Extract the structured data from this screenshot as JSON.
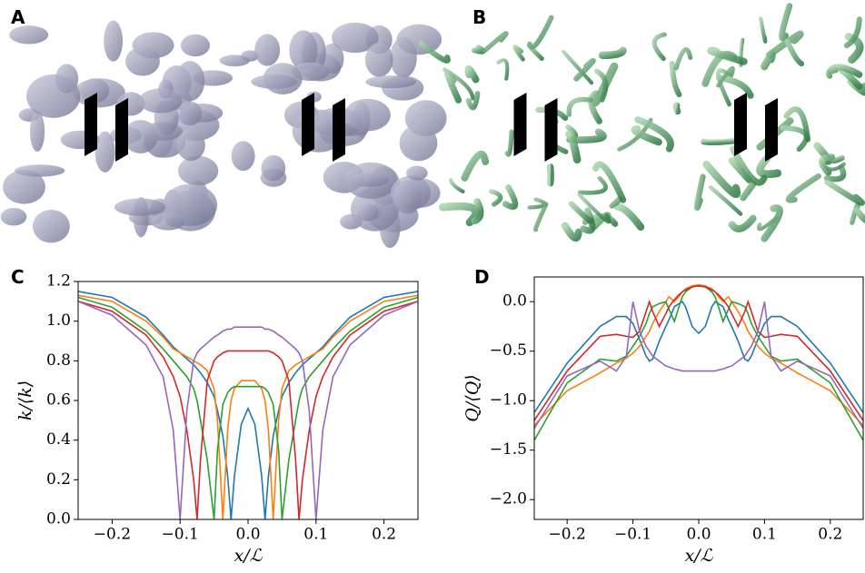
{
  "panel_labels": [
    "A",
    "B",
    "C",
    "D"
  ],
  "chart_data": [
    {
      "type": "line",
      "ylabel": "k/⟨k⟩",
      "xlabel": "x/ℒ",
      "x": [
        -0.25,
        -0.2,
        -0.15,
        -0.125,
        -0.11,
        -0.1,
        -0.09,
        -0.08,
        -0.075,
        -0.07,
        -0.06,
        -0.05,
        -0.045,
        -0.037,
        -0.03,
        -0.025,
        -0.02,
        -0.01,
        0,
        0.01,
        0.02,
        0.025,
        0.03,
        0.037,
        0.045,
        0.05,
        0.06,
        0.07,
        0.075,
        0.08,
        0.09,
        0.1,
        0.11,
        0.125,
        0.15,
        0.2,
        0.25
      ],
      "series": [
        {
          "color": "#1f77b4",
          "values": [
            1.15,
            1.12,
            1.02,
            0.93,
            0.87,
            0.84,
            0.81,
            0.78,
            0.76,
            0.74,
            0.69,
            0.62,
            0.55,
            0.42,
            0.22,
            0.0,
            0.22,
            0.48,
            0.56,
            0.48,
            0.22,
            0.0,
            0.22,
            0.42,
            0.55,
            0.62,
            0.69,
            0.74,
            0.76,
            0.78,
            0.81,
            0.84,
            0.87,
            0.93,
            1.02,
            1.12,
            1.15
          ]
        },
        {
          "color": "#ff7f0e",
          "values": [
            1.13,
            1.1,
            1.0,
            0.92,
            0.86,
            0.84,
            0.82,
            0.8,
            0.79,
            0.78,
            0.75,
            0.66,
            0.5,
            0.0,
            0.45,
            0.6,
            0.66,
            0.7,
            0.7,
            0.7,
            0.66,
            0.6,
            0.45,
            0.0,
            0.5,
            0.66,
            0.75,
            0.78,
            0.79,
            0.8,
            0.82,
            0.84,
            0.86,
            0.92,
            1.0,
            1.1,
            1.13
          ]
        },
        {
          "color": "#2ca02c",
          "values": [
            1.12,
            1.07,
            0.95,
            0.86,
            0.8,
            0.76,
            0.72,
            0.66,
            0.6,
            0.5,
            0.3,
            0.0,
            0.35,
            0.58,
            0.64,
            0.66,
            0.67,
            0.67,
            0.67,
            0.67,
            0.67,
            0.66,
            0.64,
            0.58,
            0.35,
            0.0,
            0.3,
            0.5,
            0.6,
            0.66,
            0.72,
            0.76,
            0.8,
            0.86,
            0.95,
            1.07,
            1.12
          ]
        },
        {
          "color": "#d62728",
          "values": [
            1.1,
            1.05,
            0.93,
            0.82,
            0.72,
            0.62,
            0.45,
            0.2,
            0.0,
            0.3,
            0.7,
            0.8,
            0.82,
            0.84,
            0.85,
            0.85,
            0.85,
            0.85,
            0.85,
            0.85,
            0.85,
            0.85,
            0.85,
            0.84,
            0.82,
            0.8,
            0.7,
            0.3,
            0.0,
            0.2,
            0.45,
            0.62,
            0.72,
            0.82,
            0.93,
            1.05,
            1.1
          ]
        },
        {
          "color": "#9467bd",
          "values": [
            1.1,
            1.03,
            0.88,
            0.72,
            0.45,
            0.0,
            0.55,
            0.8,
            0.84,
            0.86,
            0.89,
            0.92,
            0.93,
            0.95,
            0.96,
            0.96,
            0.97,
            0.97,
            0.97,
            0.97,
            0.97,
            0.96,
            0.96,
            0.95,
            0.93,
            0.92,
            0.89,
            0.86,
            0.84,
            0.8,
            0.55,
            0.0,
            0.45,
            0.72,
            0.88,
            1.03,
            1.1
          ]
        }
      ],
      "xlim": [
        -0.25,
        0.25
      ],
      "ylim": [
        0,
        1.2
      ],
      "xticks": [
        {
          "value": -0.2,
          "label": "−0.2"
        },
        {
          "value": -0.1,
          "label": "−0.1"
        },
        {
          "value": 0,
          "label": "0.0"
        },
        0.1,
        0.2
      ],
      "yticks": [
        {
          "value": 0,
          "label": "0.0"
        },
        0.2,
        0.4,
        0.6,
        0.8,
        {
          "value": 1,
          "label": "1.0"
        },
        1.2
      ]
    },
    {
      "type": "line",
      "ylabel": "Q/⟨Q⟩",
      "xlabel": "x/ℒ",
      "x": [
        -0.25,
        -0.2,
        -0.15,
        -0.125,
        -0.11,
        -0.1,
        -0.09,
        -0.08,
        -0.075,
        -0.07,
        -0.06,
        -0.05,
        -0.045,
        -0.037,
        -0.03,
        -0.025,
        -0.02,
        -0.01,
        0,
        0.01,
        0.02,
        0.025,
        0.03,
        0.037,
        0.045,
        0.05,
        0.06,
        0.07,
        0.075,
        0.08,
        0.09,
        0.1,
        0.11,
        0.125,
        0.15,
        0.2,
        0.25
      ],
      "series": [
        {
          "color": "#1f77b4",
          "values": [
            -1.12,
            -0.62,
            -0.25,
            -0.15,
            -0.15,
            -0.22,
            -0.38,
            -0.55,
            -0.6,
            -0.58,
            -0.4,
            -0.25,
            -0.18,
            -0.05,
            -0.02,
            0.0,
            -0.05,
            -0.25,
            -0.32,
            -0.25,
            -0.05,
            0.0,
            -0.02,
            -0.05,
            -0.18,
            -0.25,
            -0.4,
            -0.58,
            -0.6,
            -0.55,
            -0.38,
            -0.22,
            -0.15,
            -0.15,
            -0.25,
            -0.62,
            -1.12
          ]
        },
        {
          "color": "#ff7f0e",
          "values": [
            -1.25,
            -0.9,
            -0.72,
            -0.62,
            -0.57,
            -0.52,
            -0.45,
            -0.35,
            -0.3,
            -0.22,
            -0.1,
            0.0,
            0.05,
            0.0,
            0.05,
            0.1,
            0.13,
            0.16,
            0.17,
            0.16,
            0.13,
            0.1,
            0.05,
            0.0,
            0.05,
            0.0,
            -0.1,
            -0.22,
            -0.3,
            -0.35,
            -0.45,
            -0.52,
            -0.57,
            -0.62,
            -0.72,
            -0.9,
            -1.25
          ]
        },
        {
          "color": "#2ca02c",
          "values": [
            -1.4,
            -0.82,
            -0.58,
            -0.6,
            -0.55,
            -0.45,
            -0.35,
            -0.22,
            -0.12,
            -0.05,
            -0.02,
            0.0,
            -0.08,
            -0.2,
            -0.05,
            0.05,
            0.1,
            0.15,
            0.16,
            0.15,
            0.1,
            0.05,
            -0.05,
            -0.2,
            -0.08,
            0.0,
            -0.02,
            -0.05,
            -0.12,
            -0.22,
            -0.35,
            -0.45,
            -0.55,
            -0.6,
            -0.58,
            -0.82,
            -1.4
          ]
        },
        {
          "color": "#d62728",
          "values": [
            -1.2,
            -0.7,
            -0.35,
            -0.33,
            -0.35,
            -0.36,
            -0.3,
            -0.1,
            0.0,
            -0.1,
            -0.25,
            -0.12,
            -0.05,
            0.02,
            0.07,
            0.1,
            0.12,
            0.15,
            0.16,
            0.15,
            0.12,
            0.1,
            0.07,
            0.02,
            -0.05,
            -0.12,
            -0.25,
            -0.1,
            0.0,
            -0.1,
            -0.3,
            -0.36,
            -0.35,
            -0.33,
            -0.35,
            -0.7,
            -1.2
          ]
        },
        {
          "color": "#9467bd",
          "values": [
            -1.28,
            -0.75,
            -0.6,
            -0.7,
            -0.55,
            0.0,
            -0.3,
            -0.45,
            -0.5,
            -0.55,
            -0.6,
            -0.65,
            -0.66,
            -0.68,
            -0.69,
            -0.7,
            -0.7,
            -0.7,
            -0.7,
            -0.7,
            -0.7,
            -0.7,
            -0.69,
            -0.68,
            -0.66,
            -0.65,
            -0.6,
            -0.55,
            -0.5,
            -0.45,
            -0.3,
            0.0,
            -0.55,
            -0.7,
            -0.6,
            -0.75,
            -1.28
          ]
        }
      ],
      "xlim": [
        -0.25,
        0.25
      ],
      "ylim": [
        -2.2,
        0.25
      ],
      "xticks": [
        {
          "value": -0.2,
          "label": "−0.2"
        },
        {
          "value": -0.1,
          "label": "−0.1"
        },
        {
          "value": 0,
          "label": "0.0"
        },
        0.1,
        0.2
      ],
      "yticks": [
        {
          "value": -2,
          "label": "−2.0"
        },
        {
          "value": -1.5,
          "label": "−1.5"
        },
        {
          "value": -1,
          "label": "−1.0"
        },
        {
          "value": -0.5,
          "label": "−0.5"
        },
        {
          "value": 0,
          "label": "0.0"
        }
      ]
    }
  ]
}
